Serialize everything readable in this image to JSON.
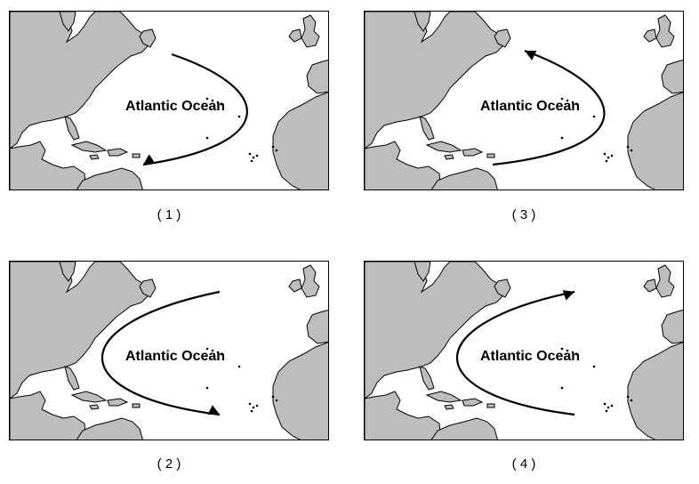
{
  "panels": [
    {
      "id": "1",
      "ocean_label": "Atlantic Ocean",
      "caption": "( 1 )",
      "arrow": "clockwise-curve-toward-caribbean"
    },
    {
      "id": "3",
      "ocean_label": "Atlantic Ocean",
      "caption": "( 3 )",
      "arrow": "counterclockwise-curve-toward-north-america"
    },
    {
      "id": "2",
      "ocean_label": "Atlantic Ocean",
      "caption": "( 2 )",
      "arrow": "westward-curve-toward-africa"
    },
    {
      "id": "4",
      "ocean_label": "Atlantic Ocean",
      "caption": "( 4 )",
      "arrow": "westward-curve-toward-europe"
    }
  ],
  "colors": {
    "land": "#bdbdbd",
    "water": "#ffffff",
    "outline": "#000000",
    "arrow": "#000000"
  }
}
